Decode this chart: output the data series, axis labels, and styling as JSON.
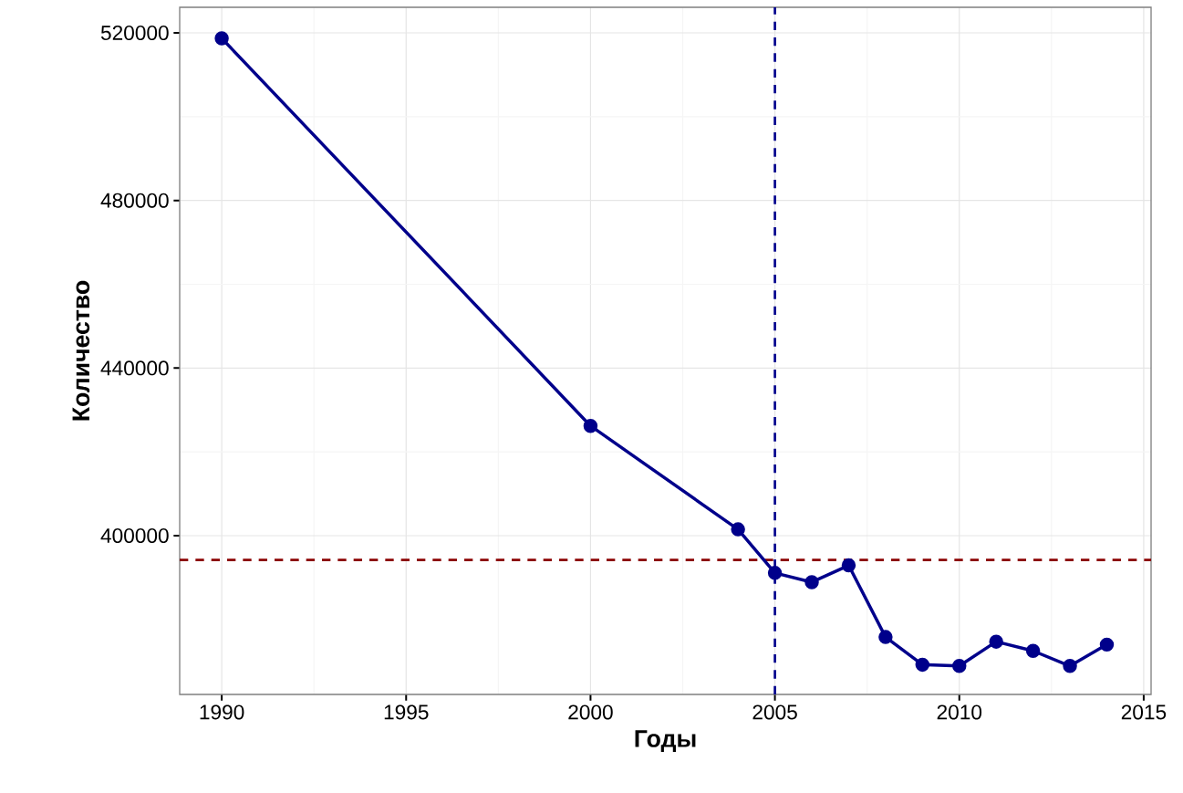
{
  "chart_data": {
    "type": "line",
    "xlabel": "Годы",
    "ylabel": "Количество",
    "x": [
      1990,
      2000,
      2004,
      2005,
      2006,
      2007,
      2008,
      2009,
      2010,
      2011,
      2012,
      2013,
      2014
    ],
    "series": [
      {
        "color": "#00008b",
        "values": [
          518700,
          426200,
          401500,
          391100,
          388900,
          392900,
          375800,
          369200,
          368900,
          374700,
          372500,
          368900,
          374000
        ]
      }
    ],
    "xlim": [
      1988.86,
      2015.2
    ],
    "ylim": [
      362100,
      526100
    ],
    "xticks": [
      1990,
      1995,
      2000,
      2005,
      2010,
      2015
    ],
    "yticks": [
      400000,
      440000,
      480000,
      520000
    ],
    "ref_lines": [
      {
        "axis": "x",
        "value": 2005,
        "color": "#00008b",
        "line_style": "dashed"
      },
      {
        "axis": "y",
        "value": 394200,
        "color": "#8b0000",
        "line_style": "dashed"
      }
    ],
    "grid": true,
    "marker": "circle",
    "line_style": "solid"
  }
}
